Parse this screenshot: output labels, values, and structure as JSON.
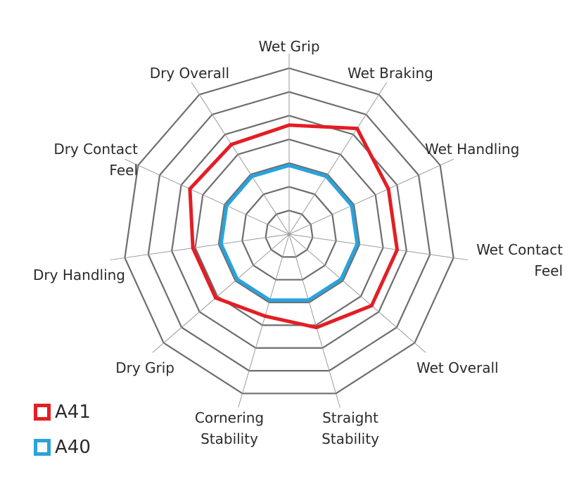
{
  "chart_data": {
    "type": "radar",
    "title": "",
    "axes": [
      "Wet Grip",
      "Wet Braking",
      "Wet Handling",
      "Wet Contact Feel",
      "Wet Overall",
      "Straight Stability",
      "Cornering Stability",
      "Dry Grip",
      "Dry Handling",
      "Dry Contact Feel",
      "Dry Overall"
    ],
    "axis_label_lines": [
      [
        "Wet Grip"
      ],
      [
        "Wet Braking"
      ],
      [
        "Wet Handling"
      ],
      [
        "Wet Contact",
        "Feel"
      ],
      [
        "Wet Overall"
      ],
      [
        "Straight",
        "Stability"
      ],
      [
        "Cornering",
        "Stability"
      ],
      [
        "Dry Grip"
      ],
      [
        "Dry Handling"
      ],
      [
        "Dry Contact",
        "Feel"
      ],
      [
        "Dry Overall"
      ]
    ],
    "rings": 7,
    "r_range": [
      0,
      7
    ],
    "grid": true,
    "legend_position": "bottom-left",
    "series": [
      {
        "name": "A41",
        "color": "#e31e24",
        "values": [
          4.6,
          5.3,
          4.6,
          4.6,
          4.6,
          4.1,
          3.6,
          4.1,
          4.1,
          4.6,
          4.5
        ]
      },
      {
        "name": "A40",
        "color": "#2aa3dc",
        "values": [
          2.9,
          2.9,
          2.9,
          2.9,
          2.9,
          2.9,
          2.9,
          2.9,
          2.9,
          2.9,
          2.9
        ]
      }
    ]
  },
  "legend": [
    {
      "label": "A41",
      "color": "#e31e24"
    },
    {
      "label": "A40",
      "color": "#2aa3dc"
    }
  ]
}
